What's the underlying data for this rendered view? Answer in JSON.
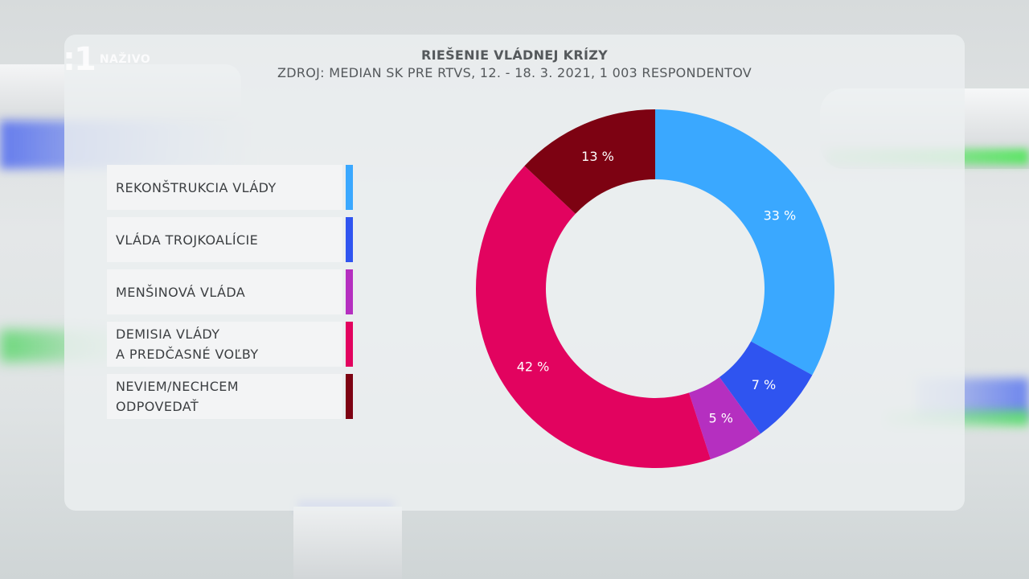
{
  "channel": {
    "logo": ":1",
    "live_label": "NAŽIVO"
  },
  "chart_data": {
    "type": "pie",
    "style": "donut",
    "title": "RIEŠENIE VLÁDNEJ KRÍZY",
    "subtitle": "ZDROJ: MEDIAN SK PRE RTVS, 12. - 18. 3. 2021, 1 003 RESPONDENTOV",
    "legend_position": "left",
    "start_angle_deg": 0,
    "direction": "clockwise",
    "slices": [
      {
        "label": "REKONŠTRUKCIA VLÁDY",
        "value": 33,
        "value_label": "33 %",
        "color": "#3aa8ff"
      },
      {
        "label": "VLÁDA TROJKOALÍCIE",
        "value": 7,
        "value_label": "7 %",
        "color": "#2f54f0"
      },
      {
        "label": "MENŠINOVÁ VLÁDA",
        "value": 5,
        "value_label": "5 %",
        "color": "#b52fc0"
      },
      {
        "label": "DEMISIA VLÁDY\nA PREDČASNÉ VOĽBY",
        "value": 42,
        "value_label": "42 %",
        "color": "#e2035f"
      },
      {
        "label": "NEVIEM/NECHCEM\nODPOVEDAŤ",
        "value": 13,
        "value_label": "13 %",
        "color": "#7d0212"
      }
    ]
  }
}
